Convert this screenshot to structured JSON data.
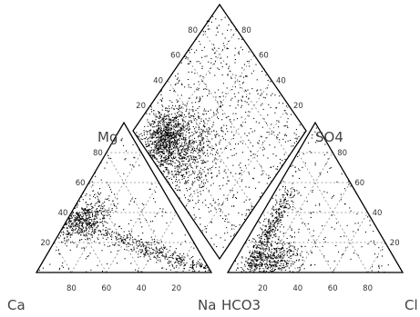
{
  "chart_data": {
    "type": "scatter",
    "subtype": "piper-diagram",
    "vertex_labels": {
      "cation_triangle": {
        "top": "Mg",
        "left": "Ca",
        "right": "Na"
      },
      "anion_triangle": {
        "top": "SO4",
        "left": "HCO3",
        "right": "Cl"
      }
    },
    "ticks": {
      "cation_left_edge": [
        "20",
        "40",
        "60",
        "80"
      ],
      "cation_bottom_edge": [
        "80",
        "60",
        "40",
        "20"
      ],
      "anion_bottom_edge": [
        "20",
        "40",
        "60",
        "80"
      ],
      "anion_right_edge": [
        "20",
        "40",
        "60",
        "80"
      ],
      "diamond_left_edge": [
        "20",
        "40",
        "60",
        "80"
      ],
      "diamond_right_edge": [
        "80",
        "60",
        "40",
        "20"
      ]
    },
    "axis_range": [
      0,
      100
    ],
    "grid": true,
    "grid_style": "dashed",
    "clusters": {
      "cation": [
        {
          "center": {
            "Mg": 35,
            "Na": 8
          },
          "spread": 7,
          "count": 460
        },
        {
          "line_from": {
            "Mg": 32,
            "Na": 10
          },
          "line_to": {
            "Mg": 2,
            "Na": 95
          },
          "spread": 2.8,
          "count": 420
        },
        {
          "uniform": true,
          "count": 160
        }
      ],
      "anion": [
        {
          "line_from": {
            "SO4": 55,
            "Cl": 8
          },
          "line_to": {
            "SO4": 2,
            "Cl": 12
          },
          "spread": 2.8,
          "count": 450
        },
        {
          "center": {
            "SO4": 8,
            "Cl": 22
          },
          "spread": 7,
          "count": 350
        },
        {
          "uniform": true,
          "count": 200
        }
      ],
      "diamond": [
        {
          "center": {
            "Mg_plus_Ca_axis": 78,
            "SO4_plus_Cl_axis": 15
          },
          "spread": 7,
          "count": 850
        },
        {
          "center": {
            "Mg_plus_Ca_axis": 60,
            "SO4_plus_Cl_axis": 25
          },
          "spread": 10,
          "count": 500
        },
        {
          "uniform": true,
          "count": 700
        }
      ]
    }
  }
}
